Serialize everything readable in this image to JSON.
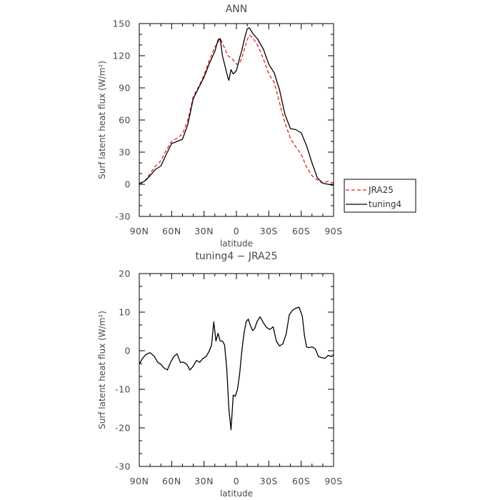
{
  "chart_data": [
    {
      "type": "line",
      "title": "ANN",
      "xlabel": "latitude",
      "ylabel": "Surf latent heat flux (W/m²)",
      "xlim": [
        90,
        -90
      ],
      "ylim": [
        -30,
        150
      ],
      "x_ticks": [
        90,
        60,
        30,
        0,
        -30,
        -60,
        -90
      ],
      "x_tick_labels": [
        "90N",
        "60N",
        "30N",
        "0",
        "30S",
        "60S",
        "90S"
      ],
      "y_ticks": [
        -30,
        0,
        30,
        60,
        90,
        120,
        150
      ],
      "y_tick_labels": [
        "-30",
        "0",
        "30",
        "60",
        "90",
        "120",
        "150"
      ],
      "legend_position": "right",
      "series": [
        {
          "name": "JRA25",
          "color": "#e8231e",
          "style": "dashed",
          "x": [
            90,
            85,
            80,
            75,
            70,
            65,
            60,
            55,
            50,
            45,
            40,
            35,
            30,
            25,
            20,
            15,
            10,
            8,
            5,
            3,
            0,
            -3,
            -5,
            -8,
            -10,
            -12,
            -15,
            -20,
            -25,
            -30,
            -35,
            -40,
            -45,
            -50,
            -55,
            -60,
            -65,
            -70,
            -75,
            -80,
            -85,
            -90
          ],
          "y": [
            1,
            3,
            10,
            17,
            22,
            32,
            40,
            43,
            47,
            60,
            82,
            91,
            102,
            116,
            128,
            136,
            125,
            120,
            118,
            116,
            112,
            113,
            118,
            128,
            135,
            139,
            137,
            129,
            117,
            103,
            95,
            76,
            57,
            43,
            35,
            28,
            16,
            8,
            4,
            1,
            3,
            1
          ]
        },
        {
          "name": "tuning4",
          "color": "#000000",
          "style": "solid",
          "x": [
            90,
            85,
            80,
            75,
            70,
            65,
            60,
            55,
            50,
            45,
            40,
            35,
            30,
            25,
            20,
            17,
            15,
            13,
            10,
            8,
            7,
            5,
            3,
            0,
            -3,
            -5,
            -8,
            -10,
            -12,
            -15,
            -20,
            -25,
            -30,
            -35,
            -40,
            -45,
            -50,
            -55,
            -60,
            -65,
            -70,
            -75,
            -80,
            -85,
            -90
          ],
          "y": [
            0,
            3,
            8,
            14,
            17,
            28,
            38,
            40,
            42,
            56,
            80,
            90,
            100,
            113,
            124,
            135,
            136,
            120,
            108,
            100,
            97,
            107,
            103,
            106,
            118,
            125,
            138,
            145,
            146,
            141,
            135,
            126,
            112,
            104,
            88,
            65,
            52,
            51,
            48,
            36,
            20,
            6,
            1,
            0,
            -1
          ]
        }
      ]
    },
    {
      "type": "line",
      "title": "tuning4 − JRA25",
      "xlabel": "latitude",
      "ylabel": "Surf latent heat flux (W/m²)",
      "xlim": [
        90,
        -90
      ],
      "ylim": [
        -30,
        20
      ],
      "x_ticks": [
        90,
        60,
        30,
        0,
        -30,
        -60,
        -90
      ],
      "x_tick_labels": [
        "90N",
        "60N",
        "30N",
        "0",
        "30S",
        "60S",
        "90S"
      ],
      "y_ticks": [
        -30,
        -20,
        -10,
        0,
        10,
        20
      ],
      "y_tick_labels": [
        "-30",
        "-20",
        "-10",
        "0",
        "10",
        "20"
      ],
      "series": [
        {
          "color": "#000000",
          "style": "solid",
          "x": [
            90,
            87,
            84,
            80,
            76,
            73,
            70,
            67,
            64,
            61,
            58,
            55,
            52,
            49,
            46,
            43,
            40,
            37,
            34,
            31,
            28,
            25,
            23,
            21,
            19,
            17,
            15,
            13,
            11,
            9,
            7,
            5,
            4,
            3,
            1,
            -1,
            -3,
            -5,
            -7,
            -9,
            -11,
            -13,
            -15,
            -17,
            -19,
            -22,
            -25,
            -28,
            -31,
            -34,
            -37,
            -40,
            -43,
            -46,
            -49,
            -52,
            -55,
            -58,
            -61,
            -63,
            -65,
            -67,
            -70,
            -73,
            -76,
            -79,
            -82,
            -85,
            -88,
            -90
          ],
          "y": [
            -3.5,
            -2,
            -1,
            -0.5,
            -1.5,
            -3,
            -3.5,
            -4.5,
            -5,
            -3,
            -1.5,
            -0.8,
            -3,
            -3,
            -3.5,
            -5,
            -4,
            -2.5,
            -3,
            -2,
            -1.5,
            0,
            1.5,
            7.5,
            2.5,
            4.5,
            2.5,
            2.5,
            1.5,
            -4.5,
            -15,
            -20.5,
            -16,
            -11.5,
            -11.8,
            -10,
            -6,
            0,
            4.5,
            7.5,
            8.2,
            6.5,
            5.2,
            5.8,
            7.5,
            8.8,
            7.2,
            6,
            5.5,
            6.2,
            2.5,
            1.2,
            1.8,
            4.2,
            9.3,
            10.5,
            11,
            11.3,
            9,
            4,
            1,
            0.8,
            1,
            0.5,
            -1.5,
            -1.8,
            -2,
            -1.2,
            -1.5,
            -1
          ]
        }
      ]
    }
  ]
}
